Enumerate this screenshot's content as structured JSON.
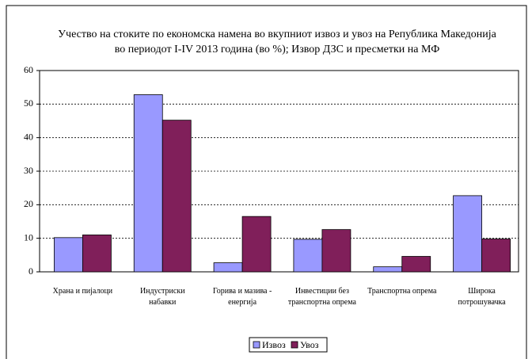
{
  "chart_data": {
    "type": "bar",
    "title": "Учество на стоките по економска намена во вкупниот извоз и увоз на Република Македонија во периодот I-IV 2013 година (во %); Извор ДЗС и пресметки на МФ",
    "categories": [
      "Храна и пијалоци",
      "Индустриски набавки",
      "Горива и мазива - енергија",
      "Инвестиции без транспортна опрема",
      "Транспортна опрема",
      "Широка потрошувачка"
    ],
    "series": [
      {
        "name": "Извоз",
        "color": "#9999ff",
        "values": [
          10.2,
          52.8,
          2.7,
          9.7,
          1.5,
          22.7
        ]
      },
      {
        "name": "Увоз",
        "color": "#801f5a",
        "values": [
          11.0,
          45.2,
          16.5,
          12.6,
          4.6,
          9.8
        ]
      }
    ],
    "ylim": [
      0,
      60
    ],
    "yticks": [
      0,
      10,
      20,
      30,
      40,
      50,
      60
    ],
    "grid": true,
    "legend": "bottom"
  }
}
